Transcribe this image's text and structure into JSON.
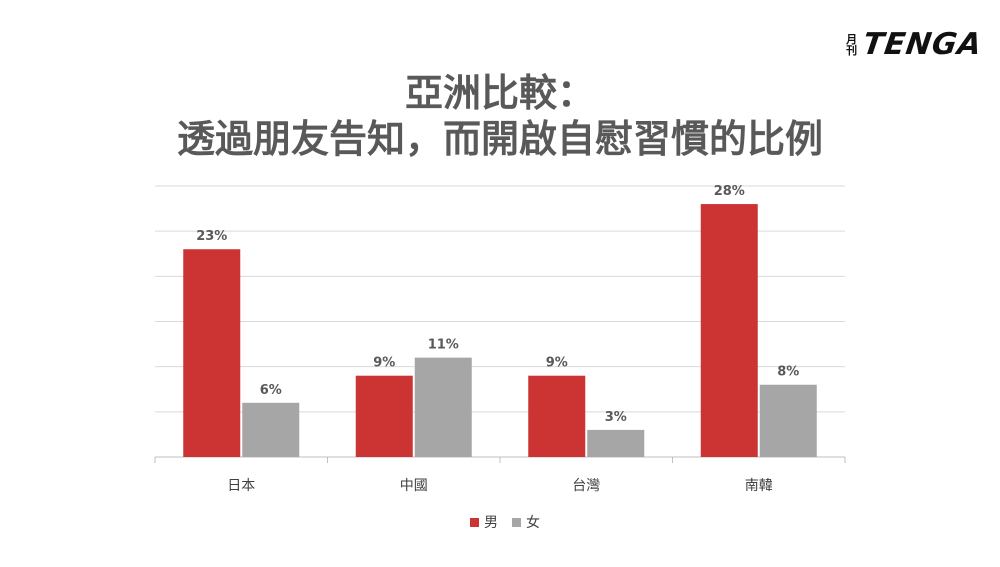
{
  "logo": {
    "small_top": "月",
    "small_bottom": "刊",
    "main": "TENGA"
  },
  "title_line1": "亞洲比較：",
  "title_line2": "透過朋友告知，而開啟自慰習慣的比例",
  "chart_data": {
    "type": "bar",
    "categories": [
      "日本",
      "中國",
      "台灣",
      "南韓"
    ],
    "series": [
      {
        "name": "男",
        "values": [
          23,
          9,
          9,
          28
        ],
        "labels": [
          "23%",
          "9%",
          "9%",
          "28%"
        ]
      },
      {
        "name": "女",
        "values": [
          6,
          11,
          3,
          8
        ],
        "labels": [
          "6%",
          "11%",
          "3%",
          "8%"
        ]
      }
    ],
    "ylim": [
      0,
      30
    ],
    "y_tick_step": 5,
    "grid": true,
    "legend_position": "bottom",
    "colors": {
      "男": "#cc3333",
      "女": "#a6a6a6"
    }
  }
}
